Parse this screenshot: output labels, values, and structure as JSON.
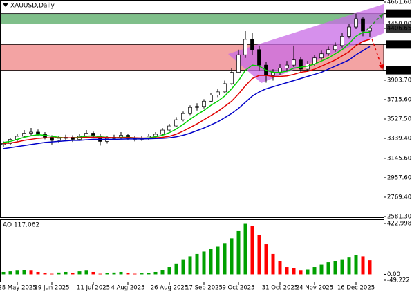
{
  "chart_data": [
    {
      "type": "candlestick",
      "title": "XAUUSD,Daily",
      "categories": [
        null,
        null,
        "28 May 2025",
        null,
        null,
        null,
        null,
        "19 Jun 2025",
        null,
        null,
        null,
        null,
        null,
        "11 Jul 2025",
        null,
        null,
        null,
        null,
        "4 Aug 2025",
        null,
        null,
        null,
        null,
        null,
        "26 Aug 2025",
        null,
        null,
        null,
        null,
        "17 Sep 2025",
        null,
        null,
        null,
        null,
        "9 Oct 2025",
        null,
        null,
        null,
        null,
        null,
        "31 Oct 2025",
        null,
        null,
        null,
        null,
        "24 Nov 2025",
        null,
        null,
        null,
        null,
        null,
        "16 Dec 2025",
        null,
        null
      ],
      "ohlc": [
        [
          3280,
          3310,
          3260,
          3290
        ],
        [
          3290,
          3345,
          3275,
          3330
        ],
        [
          3330,
          3380,
          3310,
          3360
        ],
        [
          3360,
          3420,
          3340,
          3390
        ],
        [
          3390,
          3440,
          3370,
          3400
        ],
        [
          3400,
          3425,
          3360,
          3380
        ],
        [
          3380,
          3400,
          3330,
          3350
        ],
        [
          3350,
          3370,
          3280,
          3320
        ],
        [
          3320,
          3365,
          3300,
          3340
        ],
        [
          3340,
          3375,
          3320,
          3350
        ],
        [
          3350,
          3370,
          3305,
          3330
        ],
        [
          3330,
          3385,
          3315,
          3360
        ],
        [
          3360,
          3420,
          3345,
          3390
        ],
        [
          3390,
          3405,
          3340,
          3360
        ],
        [
          3360,
          3380,
          3270,
          3310
        ],
        [
          3310,
          3360,
          3290,
          3340
        ],
        [
          3340,
          3375,
          3320,
          3350
        ],
        [
          3350,
          3400,
          3335,
          3370
        ],
        [
          3370,
          3385,
          3320,
          3340
        ],
        [
          3340,
          3360,
          3310,
          3330
        ],
        [
          3330,
          3360,
          3315,
          3340
        ],
        [
          3340,
          3385,
          3325,
          3360
        ],
        [
          3360,
          3400,
          3345,
          3380
        ],
        [
          3380,
          3440,
          3370,
          3420
        ],
        [
          3420,
          3480,
          3405,
          3460
        ],
        [
          3460,
          3545,
          3450,
          3520
        ],
        [
          3520,
          3600,
          3505,
          3580
        ],
        [
          3580,
          3660,
          3565,
          3640
        ],
        [
          3640,
          3680,
          3610,
          3650
        ],
        [
          3650,
          3720,
          3630,
          3700
        ],
        [
          3700,
          3780,
          3690,
          3760
        ],
        [
          3760,
          3820,
          3740,
          3790
        ],
        [
          3790,
          3900,
          3780,
          3870
        ],
        [
          3870,
          4020,
          3860,
          3980
        ],
        [
          3980,
          4200,
          3970,
          4150
        ],
        [
          4150,
          4380,
          4120,
          4300
        ],
        [
          4300,
          4360,
          4150,
          4200
        ],
        [
          4200,
          4240,
          4000,
          4050
        ],
        [
          4050,
          4080,
          3880,
          3950
        ],
        [
          3950,
          4010,
          3900,
          3980
        ],
        [
          3980,
          4060,
          3950,
          4020
        ],
        [
          4020,
          4090,
          3990,
          4050
        ],
        [
          4050,
          4240,
          4030,
          4100
        ],
        [
          4100,
          4130,
          3980,
          4010
        ],
        [
          4010,
          4090,
          3990,
          4060
        ],
        [
          4060,
          4150,
          4040,
          4120
        ],
        [
          4120,
          4190,
          4100,
          4160
        ],
        [
          4160,
          4230,
          4140,
          4200
        ],
        [
          4200,
          4270,
          4180,
          4240
        ],
        [
          4240,
          4360,
          4220,
          4330
        ],
        [
          4330,
          4450,
          4310,
          4420
        ],
        [
          4420,
          4550,
          4400,
          4500
        ],
        [
          4500,
          4520,
          4330,
          4380
        ],
        [
          4380,
          4420,
          4320,
          4406.65
        ]
      ],
      "series": [
        {
          "color": "#00d000",
          "values": [
            3300,
            3310,
            3330,
            3350,
            3365,
            3375,
            3370,
            3360,
            3350,
            3345,
            3345,
            3350,
            3360,
            3365,
            3355,
            3350,
            3345,
            3350,
            3350,
            3345,
            3340,
            3345,
            3355,
            3370,
            3395,
            3430,
            3475,
            3525,
            3570,
            3610,
            3660,
            3700,
            3750,
            3820,
            3900,
            4000,
            4050,
            4040,
            4000,
            3980,
            3980,
            3990,
            4020,
            4030,
            4040,
            4060,
            4090,
            4120,
            4160,
            4200,
            4260,
            4330,
            4370,
            4370
          ]
        },
        {
          "color": "#e00000",
          "values": [
            3290,
            3295,
            3305,
            3320,
            3330,
            3340,
            3345,
            3345,
            3345,
            3345,
            3345,
            3345,
            3350,
            3350,
            3350,
            3348,
            3346,
            3346,
            3347,
            3345,
            3343,
            3342,
            3345,
            3350,
            3360,
            3380,
            3410,
            3445,
            3480,
            3520,
            3560,
            3600,
            3650,
            3700,
            3770,
            3850,
            3920,
            3950,
            3950,
            3940,
            3940,
            3945,
            3960,
            3980,
            3990,
            4010,
            4040,
            4070,
            4100,
            4140,
            4180,
            4240,
            4280,
            4300
          ]
        },
        {
          "color": "#0000c8",
          "values": [
            3240,
            3250,
            3260,
            3270,
            3280,
            3290,
            3300,
            3305,
            3310,
            3315,
            3320,
            3320,
            3325,
            3330,
            3330,
            3330,
            3330,
            3332,
            3334,
            3334,
            3334,
            3335,
            3338,
            3340,
            3345,
            3355,
            3370,
            3390,
            3415,
            3440,
            3470,
            3500,
            3540,
            3580,
            3630,
            3690,
            3750,
            3790,
            3820,
            3840,
            3860,
            3880,
            3900,
            3920,
            3940,
            3960,
            3980,
            4010,
            4040,
            4070,
            4100,
            4150,
            4190,
            4230
          ]
        }
      ],
      "zones": [
        {
          "from": 4450,
          "to": 4550,
          "color": "#7fbf8a"
        },
        {
          "from": 4000,
          "to": 4250,
          "color": "#f3a3a3"
        }
      ],
      "ylim": [
        2581.3,
        4661.6
      ],
      "yticks": [
        {
          "value": 4661.6,
          "label": "4661.60"
        },
        {
          "value": 4550,
          "label": "4550.00",
          "highlight": true
        },
        {
          "value": 4450,
          "label": "4450.00"
        },
        {
          "value": 4406.65,
          "label": "4406.65",
          "highlight": true
        },
        {
          "value": 4250,
          "label": "4250.00",
          "highlight": true
        },
        {
          "value": 4000,
          "label": "4000.00",
          "highlight": true
        },
        {
          "value": 3903.7,
          "label": "3903.70"
        },
        {
          "value": 3715.6,
          "label": "3715.60"
        },
        {
          "value": 3527.5,
          "label": "3527.50"
        },
        {
          "value": 3339.4,
          "label": "3339.40"
        },
        {
          "value": 3145.6,
          "label": "3145.60"
        },
        {
          "value": 2957.6,
          "label": "2957.60"
        },
        {
          "value": 2769.4,
          "label": "2769.40"
        },
        {
          "value": 2581.3,
          "label": "2581.30"
        }
      ]
    },
    {
      "type": "histogram-oscillator",
      "title": "AO 117.062",
      "values": [
        20,
        25,
        30,
        35,
        30,
        20,
        10,
        5,
        15,
        20,
        10,
        25,
        30,
        20,
        5,
        10,
        15,
        20,
        10,
        5,
        8,
        12,
        20,
        35,
        60,
        90,
        120,
        150,
        170,
        190,
        210,
        230,
        260,
        300,
        360,
        420,
        400,
        330,
        250,
        170,
        110,
        60,
        50,
        30,
        40,
        60,
        80,
        100,
        110,
        120,
        140,
        160,
        150,
        117.062
      ],
      "up_color": "#00a000",
      "down_color": "#ff0000",
      "ylim": [
        -49.222,
        422.998
      ],
      "yticks": [
        {
          "value": 422.998,
          "label": "422.998"
        },
        {
          "value": 0,
          "label": "0.00"
        },
        {
          "value": -49.222,
          "label": "-49.222"
        }
      ]
    }
  ]
}
